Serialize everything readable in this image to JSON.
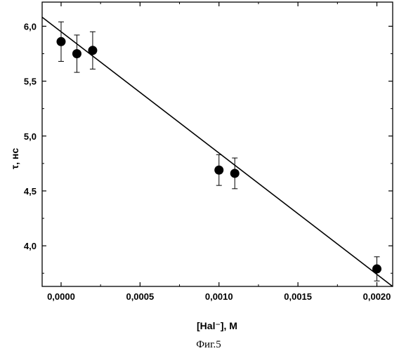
{
  "chart_data": {
    "type": "scatter",
    "title": "",
    "xlabel": "[Hal⁻], M",
    "ylabel": "τ, нс",
    "xlim": [
      -0.00012,
      0.0021
    ],
    "ylim": [
      3.63,
      6.22
    ],
    "x_ticks": [
      0.0,
      0.0005,
      0.001,
      0.0015,
      0.002
    ],
    "x_tick_labels": [
      "0,0000",
      "0,0005",
      "0,0010",
      "0,0015",
      "0,0020"
    ],
    "y_ticks": [
      4.0,
      4.5,
      5.0,
      5.5,
      6.0
    ],
    "y_tick_labels": [
      "4,0",
      "4,5",
      "5,0",
      "5,5",
      "6,0"
    ],
    "grid": false,
    "series": [
      {
        "points": [
          {
            "x": 0.0,
            "y": 5.86,
            "err": 0.18
          },
          {
            "x": 0.0001,
            "y": 5.75,
            "err": 0.17
          },
          {
            "x": 0.0002,
            "y": 5.78,
            "err": 0.17
          },
          {
            "x": 0.001,
            "y": 4.69,
            "err": 0.14
          },
          {
            "x": 0.0011,
            "y": 4.66,
            "err": 0.14
          },
          {
            "x": 0.002,
            "y": 3.79,
            "err": 0.11
          }
        ]
      }
    ],
    "fit_line": {
      "slope": -1105,
      "intercept": 5.95
    },
    "caption": "Фиг.5"
  }
}
